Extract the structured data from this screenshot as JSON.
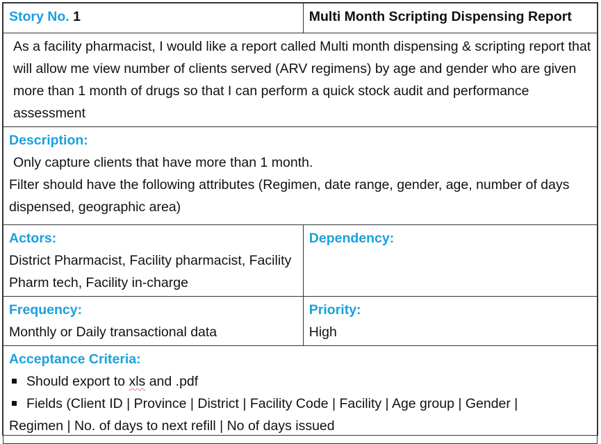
{
  "story": {
    "number_label": "Story No.",
    "number_value": "1",
    "title": "Multi Month Scripting Dispensing Report"
  },
  "intro": {
    "text": "As a facility pharmacist, I would like a report called Multi month dispensing & scripting report that will allow me view number of clients served (ARV regimens) by age and gender who are given more than 1 month of drugs so that I can perform a quick stock audit and performance assessment"
  },
  "description": {
    "label": "Description:",
    "line1": "Only capture clients that have more than 1 month.",
    "line2": "Filter should have the following attributes (Regimen, date range, gender, age, number of days dispensed, geographic area)"
  },
  "actors": {
    "label": "Actors:",
    "text": "District Pharmacist, Facility pharmacist, Facility Pharm tech, Facility in-charge"
  },
  "dependency": {
    "label": "Dependency:",
    "text": ""
  },
  "frequency": {
    "label": "Frequency:",
    "text": "Monthly or Daily transactional data"
  },
  "priority": {
    "label": "Priority:",
    "text": "High"
  },
  "acceptance": {
    "label": "Acceptance Criteria:",
    "bullet1_pre": "Should export to ",
    "bullet1_xls": "xls",
    "bullet1_post": " and .pdf",
    "bullet2": "Fields (Client ID | Province | District | Facility Code | Facility | Age group | Gender |",
    "bullet2_cont": "Regimen | No. of days to next refill | No of days issued"
  },
  "colors": {
    "label_blue": "#1aa1dc",
    "border": "#333333",
    "text": "#111111"
  }
}
